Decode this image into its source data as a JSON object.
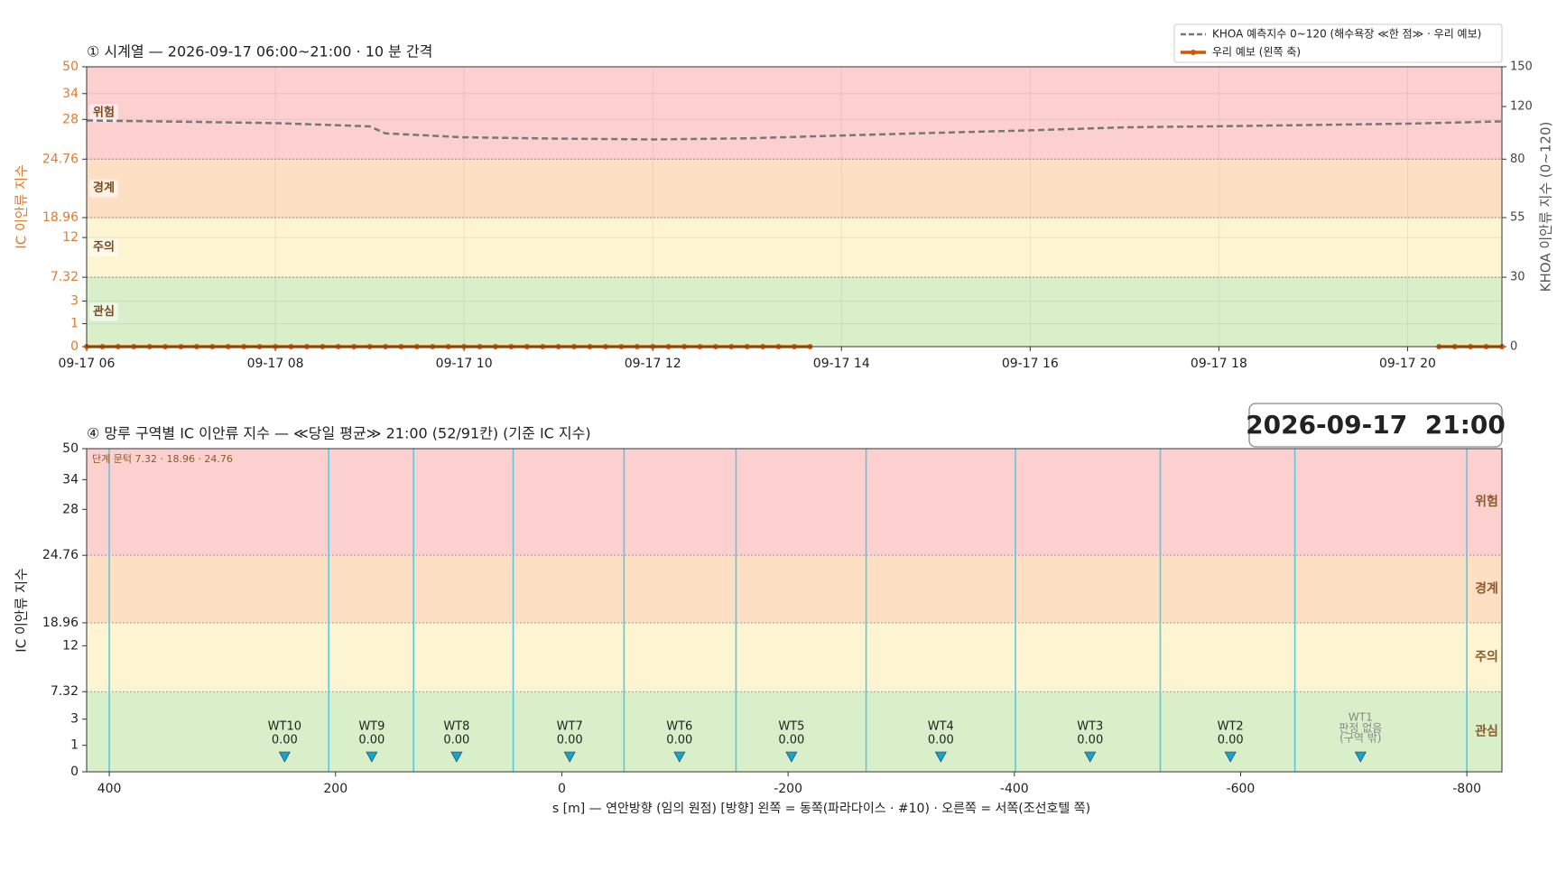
{
  "chart_data": [
    {
      "type": "line",
      "title": "① 시계열 — 2026-09-17 06:00~21:00 · 10 분 간격",
      "ylabel": "IC 이안류 지수",
      "y2label": "KHOA 이안류 지수 (0~120)",
      "xlim": [
        360,
        1260
      ],
      "xticks": [
        {
          "value": 360,
          "label": "09-17 06"
        },
        {
          "value": 480,
          "label": "09-17 08"
        },
        {
          "value": 600,
          "label": "09-17 10"
        },
        {
          "value": 720,
          "label": "09-17 12"
        },
        {
          "value": 840,
          "label": "09-17 14"
        },
        {
          "value": 960,
          "label": "09-17 16"
        },
        {
          "value": 1080,
          "label": "09-17 18"
        },
        {
          "value": 1200,
          "label": "09-17 20"
        }
      ],
      "ylim": [
        0,
        50
      ],
      "yticks": [
        0,
        1,
        3,
        7.32,
        12,
        18.96,
        24.76,
        28,
        34,
        50
      ],
      "y2lim": [
        0,
        150
      ],
      "y2ticks": [
        0,
        30,
        55,
        80,
        120,
        150
      ],
      "grid": true,
      "legend": "upper right",
      "bands": [
        {
          "name": "관심",
          "from": 0,
          "to": 7.32,
          "color": "#d9efc9"
        },
        {
          "name": "주의",
          "from": 7.32,
          "to": 18.96,
          "color": "#fdf4d2"
        },
        {
          "name": "경계",
          "from": 18.96,
          "to": 24.76,
          "color": "#fde0c4"
        },
        {
          "name": "위험",
          "from": 24.76,
          "to": 50,
          "color": "#fdd0d0"
        }
      ],
      "series": [
        {
          "name": "KHOA 예측지수 0~120 (해수욕장 ≪한 점≫ · 우리 예보)",
          "color": "#777777",
          "axis": "y2",
          "style": "dashed",
          "x": [
            360,
            420,
            480,
            540,
            550,
            600,
            660,
            720,
            780,
            840,
            900,
            960,
            1020,
            1080,
            1140,
            1200,
            1260
          ],
          "values": [
            109.4,
            108.5,
            107.4,
            104.9,
            99.6,
            96.6,
            95.6,
            95,
            95.8,
            98,
            100,
            101.9,
            104.2,
            105,
            106,
            107,
            108.7
          ]
        },
        {
          "name": "우리 예보 (왼쪽 축)",
          "color": "#d35400",
          "axis": "y",
          "style": "solid-dot",
          "x": [
            360,
            370,
            380,
            390,
            400,
            410,
            420,
            430,
            440,
            450,
            460,
            470,
            480,
            490,
            500,
            510,
            520,
            530,
            540,
            550,
            560,
            570,
            580,
            590,
            600,
            610,
            620,
            630,
            640,
            650,
            660,
            670,
            680,
            690,
            700,
            710,
            720,
            730,
            740,
            750,
            760,
            770,
            780,
            790,
            800,
            810,
            820,
            830,
            1220,
            1230,
            1240,
            1250,
            1260
          ],
          "values": [
            0,
            0,
            0,
            0,
            0,
            0,
            0,
            0,
            0,
            0,
            0,
            0,
            0,
            0,
            0,
            0,
            0,
            0,
            0,
            0,
            0,
            0,
            0,
            0,
            0,
            0,
            0,
            0,
            0,
            0,
            0,
            0,
            0,
            0,
            0,
            0,
            0,
            0,
            0,
            0,
            0,
            0,
            0,
            0,
            0,
            0,
            0,
            null,
            0,
            0,
            0,
            0,
            0
          ]
        }
      ]
    },
    {
      "type": "zone",
      "title": "④ 망루 구역별 IC 이안류 지수 — ≪당일 평균≫ 21:00  (52/91칸)   (기준 IC 지수)",
      "timestamp": "2026-09-17  21:00",
      "annotation": "단계 문턱 7.32 · 18.96 · 24.76",
      "ylabel": "IC 이안류 지수",
      "xlabel": "s [m] — 연안방향 (임의 원점)     [방향] 왼쪽 = 동쪽(파라다이스 · #10) · 오른쪽 = 서쪽(조선호텔 쪽)",
      "xlim": [
        420,
        -831
      ],
      "xticks": [
        400,
        200,
        0,
        -200,
        -400,
        -600,
        -800
      ],
      "ylim": [
        0,
        50
      ],
      "yticks": [
        0,
        1,
        3,
        7.32,
        12,
        18.96,
        24.76,
        28,
        34,
        50
      ],
      "bands": [
        {
          "name": "관심",
          "from": 0,
          "to": 7.32,
          "color": "#d9efc9"
        },
        {
          "name": "주의",
          "from": 7.32,
          "to": 18.96,
          "color": "#fdf4d2"
        },
        {
          "name": "경계",
          "from": 18.96,
          "to": 24.76,
          "color": "#fde0c4"
        },
        {
          "name": "위험",
          "from": 24.76,
          "to": 50,
          "color": "#fdd0d0"
        }
      ],
      "boundaries": [
        400,
        206,
        131,
        43,
        -55,
        -154,
        -269,
        -401,
        -529,
        -648,
        -800
      ],
      "boundary_color": "#5bc8e0",
      "marker_color": "#1aa3c8",
      "zones": [
        {
          "name": "WT10",
          "x": 245,
          "value": 0,
          "value_label": "0.00"
        },
        {
          "name": "WT9",
          "x": 168,
          "value": 0,
          "value_label": "0.00"
        },
        {
          "name": "WT8",
          "x": 93,
          "value": 0,
          "value_label": "0.00"
        },
        {
          "name": "WT7",
          "x": -7,
          "value": 0,
          "value_label": "0.00"
        },
        {
          "name": "WT6",
          "x": -104,
          "value": 0,
          "value_label": "0.00"
        },
        {
          "name": "WT5",
          "x": -203,
          "value": 0,
          "value_label": "0.00"
        },
        {
          "name": "WT4",
          "x": -335,
          "value": 0,
          "value_label": "0.00"
        },
        {
          "name": "WT3",
          "x": -467,
          "value": 0,
          "value_label": "0.00"
        },
        {
          "name": "WT2",
          "x": -591,
          "value": 0,
          "value_label": "0.00"
        },
        {
          "name": "WT1",
          "x": -706,
          "value": null,
          "note": [
            "판정 없음",
            "(구역 밖)"
          ]
        }
      ]
    }
  ]
}
